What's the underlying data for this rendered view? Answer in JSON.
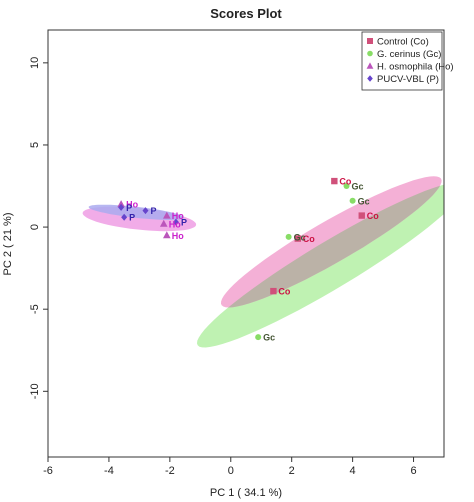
{
  "chart_data": {
    "type": "scatter",
    "title": "Scores Plot",
    "xlabel": "PC 1 ( 34.1 %)",
    "ylabel": "PC 2 ( 21 %)",
    "xlim": [
      -6,
      7
    ],
    "ylim": [
      -14,
      12
    ],
    "xticks": [
      -6,
      -4,
      -2,
      0,
      2,
      4,
      6
    ],
    "yticks": [
      -10,
      -5,
      0,
      5,
      10
    ],
    "grid": false,
    "legend_position": "top-right",
    "series": [
      {
        "name": "Control (Co)",
        "label": "Co",
        "marker": "square",
        "color": "#d0507a",
        "label_color": "#cc1144",
        "fill": "#f2a2cf",
        "points": [
          [
            3.4,
            2.8
          ],
          [
            4.3,
            0.7
          ],
          [
            2.2,
            -0.7
          ],
          [
            1.4,
            -3.9
          ]
        ]
      },
      {
        "name": "G. cerinus (Gc)",
        "label": "Gc",
        "marker": "circle",
        "color": "#88dd66",
        "label_color": "#445533",
        "fill": "#b4f0a4",
        "points": [
          [
            3.8,
            2.5
          ],
          [
            4.0,
            1.6
          ],
          [
            1.9,
            -0.6
          ],
          [
            0.9,
            -6.7
          ]
        ]
      },
      {
        "name": "H. osmophila (Ho)",
        "label": "Ho",
        "marker": "triangle",
        "color": "#bb55bb",
        "label_color": "#cc22cc",
        "fill": "#ee9ee4",
        "points": [
          [
            -3.6,
            1.4
          ],
          [
            -2.1,
            0.7
          ],
          [
            -2.2,
            0.2
          ],
          [
            -2.1,
            -0.5
          ]
        ]
      },
      {
        "name": "PUCV-VBL (P)",
        "label": "P",
        "marker": "diamond",
        "color": "#6644cc",
        "label_color": "#3322aa",
        "fill": "#aaaaee",
        "points": [
          [
            -2.8,
            1.0
          ],
          [
            -3.5,
            0.6
          ],
          [
            -3.6,
            1.2
          ],
          [
            -1.8,
            0.3
          ]
        ]
      }
    ],
    "ellipses": [
      {
        "series": "G. cerinus (Gc)",
        "center": [
          3.3,
          -2.3
        ],
        "radii": [
          6.6,
          1.1
        ],
        "angle_deg": 49
      },
      {
        "series": "Control (Co)",
        "center": [
          3.3,
          -0.9
        ],
        "radii": [
          5.3,
          1.0
        ],
        "angle_deg": 48
      },
      {
        "series": "H. osmophila (Ho)",
        "center": [
          -3.0,
          0.5
        ],
        "radii": [
          1.9,
          0.65
        ],
        "angle_deg": -12
      },
      {
        "series": "PUCV-VBL (P)",
        "center": [
          -3.1,
          0.9
        ],
        "radii": [
          1.6,
          0.33
        ],
        "angle_deg": -12
      }
    ],
    "overlap_color": "#b8b2a4"
  }
}
